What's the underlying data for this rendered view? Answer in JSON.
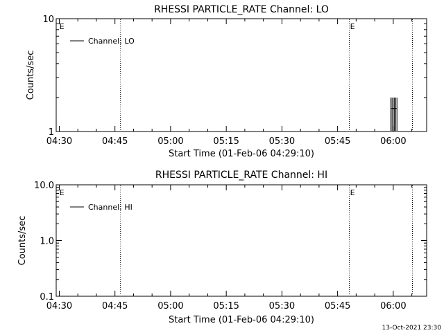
{
  "footer": {
    "timestamp": "13-Oct-2021 23:30"
  },
  "chart_data": [
    {
      "type": "line",
      "title": "RHESSI PARTICLE_RATE Channel: LO",
      "xlabel": "Start Time (01-Feb-06 04:29:10)",
      "ylabel": "Counts/sec",
      "yscale": "log",
      "xlim": [
        "04:29:10",
        "06:09:00"
      ],
      "ylim": [
        1,
        10
      ],
      "x_ticks": [
        "04:30",
        "04:45",
        "05:00",
        "05:15",
        "05:30",
        "05:45",
        "06:00"
      ],
      "y_ticks": [
        {
          "value": 1,
          "label": "1"
        },
        {
          "value": 10,
          "label": "10"
        }
      ],
      "legend": {
        "position": "top-left",
        "entries": [
          "Channel: LO"
        ]
      },
      "event_markers": [
        {
          "time": "04:29:50",
          "label": "E",
          "line": false
        },
        {
          "time": "04:46:30",
          "label": "",
          "line": true
        },
        {
          "time": "05:48:10",
          "label": "E",
          "line": true
        },
        {
          "time": "06:05:10",
          "label": "",
          "line": true
        }
      ],
      "series": [
        {
          "name": "Channel: LO",
          "spikes": [
            {
              "time": "05:59:20",
              "value": 2
            },
            {
              "time": "05:59:40",
              "value": 2
            },
            {
              "time": "06:00:00",
              "value": 2
            },
            {
              "time": "06:00:20",
              "value": 2
            },
            {
              "time": "06:00:40",
              "value": 2
            },
            {
              "time": "06:01:00",
              "value": 2
            }
          ]
        }
      ]
    },
    {
      "type": "line",
      "title": "RHESSI PARTICLE_RATE Channel: HI",
      "xlabel": "Start Time (01-Feb-06 04:29:10)",
      "ylabel": "Counts/sec",
      "yscale": "log",
      "xlim": [
        "04:29:10",
        "06:09:00"
      ],
      "ylim": [
        0.1,
        10
      ],
      "x_ticks": [
        "04:30",
        "04:45",
        "05:00",
        "05:15",
        "05:30",
        "05:45",
        "06:00"
      ],
      "y_ticks": [
        {
          "value": 0.1,
          "label": "0.1"
        },
        {
          "value": 1,
          "label": "1.0"
        },
        {
          "value": 10,
          "label": "10.0"
        }
      ],
      "legend": {
        "position": "top-left",
        "entries": [
          "Channel: HI"
        ]
      },
      "event_markers": [
        {
          "time": "04:29:50",
          "label": "E",
          "line": false
        },
        {
          "time": "04:46:30",
          "label": "",
          "line": true
        },
        {
          "time": "05:48:10",
          "label": "E",
          "line": true
        },
        {
          "time": "06:05:10",
          "label": "",
          "line": true
        }
      ],
      "series": [
        {
          "name": "Channel: HI",
          "spikes": []
        }
      ]
    }
  ]
}
